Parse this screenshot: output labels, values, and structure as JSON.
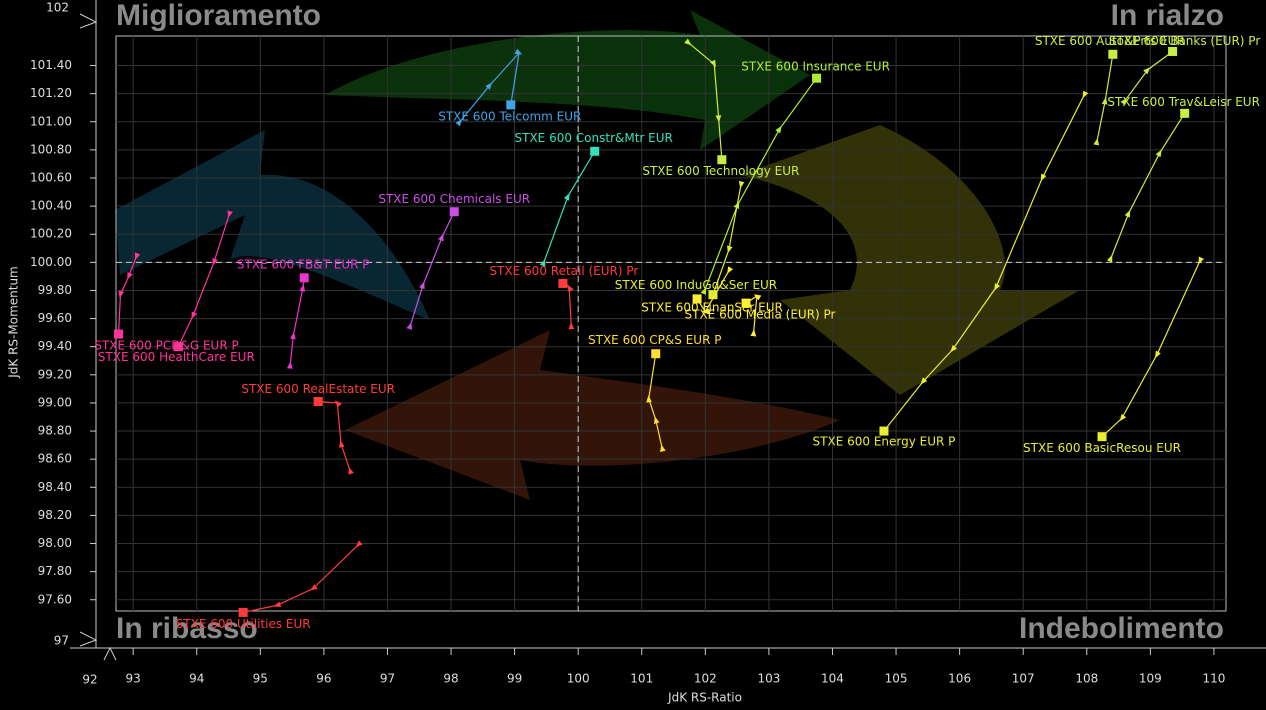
{
  "chart_data": {
    "type": "rrg",
    "x_label": "JdK RS-Ratio",
    "y_label": "JdK RS-Momentum",
    "quadrant_labels": {
      "top_left": "Miglioramento",
      "top_right": "In rialzo",
      "bottom_left": "In ribasso",
      "bottom_right": "Indebolimento"
    },
    "y_break_labels": [
      102,
      97
    ],
    "x_break_label": 92,
    "xlim": [
      92.73,
      110.19
    ],
    "ylim": [
      97.52,
      101.61
    ],
    "xticks": [
      93,
      94,
      95,
      96,
      97,
      98,
      99,
      100,
      101,
      102,
      103,
      104,
      105,
      106,
      107,
      108,
      109,
      110
    ],
    "yticks": [
      {
        "value": 97.6,
        "label": "97.60"
      },
      {
        "value": 97.8,
        "label": "97.80"
      },
      {
        "value": 98.0,
        "label": "98.00"
      },
      {
        "value": 98.2,
        "label": "98.20"
      },
      {
        "value": 98.4,
        "label": "98.40"
      },
      {
        "value": 98.6,
        "label": "98.60"
      },
      {
        "value": 98.8,
        "label": "98.80"
      },
      {
        "value": 99.0,
        "label": "99.00"
      },
      {
        "value": 99.2,
        "label": "99.20"
      },
      {
        "value": 99.4,
        "label": "99.40"
      },
      {
        "value": 99.6,
        "label": "99.60"
      },
      {
        "value": 99.8,
        "label": "99.80"
      },
      {
        "value": 100.0,
        "label": "100.00"
      },
      {
        "value": 100.2,
        "label": "100.20"
      },
      {
        "value": 100.4,
        "label": "100.40"
      },
      {
        "value": 100.6,
        "label": "100.60"
      },
      {
        "value": 100.8,
        "label": "100.80"
      },
      {
        "value": 101.0,
        "label": "101.00"
      },
      {
        "value": 101.2,
        "label": "101.20"
      },
      {
        "value": 101.4,
        "label": "101.40"
      }
    ],
    "grid": true,
    "reference_lines": {
      "x": 100,
      "y": 100
    },
    "series": [
      {
        "name": "STXE 600 Telcomm EUR",
        "color": "#3fa3e8",
        "x": [
          98.14,
          98.61,
          99.07,
          98.94
        ],
        "y": [
          101.0,
          101.26,
          101.49,
          101.12
        ]
      },
      {
        "name": "STXE 600 Constr&Mtr EUR",
        "color": "#33e0bb",
        "x": [
          99.46,
          99.84,
          100.26
        ],
        "y": [
          100.0,
          100.47,
          100.79
        ]
      },
      {
        "name": "STXE 600 Chemicals EUR",
        "color": "#cc4ee8",
        "x": [
          97.36,
          97.56,
          97.86,
          98.05
        ],
        "y": [
          99.55,
          99.84,
          100.18,
          100.36
        ]
      },
      {
        "name": "STXE 600 FB&T EUR P",
        "color": "#ee33cc",
        "x": [
          95.47,
          95.52,
          95.67,
          95.69
        ],
        "y": [
          99.27,
          99.48,
          99.82,
          99.89
        ]
      },
      {
        "name": "STXE 600 PCD&G EUR P",
        "color": "#ff3399",
        "x": [
          93.05,
          92.93,
          92.8,
          92.77
        ],
        "y": [
          100.04,
          99.9,
          99.77,
          99.49
        ]
      },
      {
        "name": "STXE 600 HealthCare EUR",
        "color": "#ff3399",
        "x": [
          94.51,
          94.27,
          93.94,
          93.71
        ],
        "y": [
          100.34,
          100.0,
          99.62,
          99.4
        ]
      },
      {
        "name": "STXE 600 RealEstate EUR",
        "color": "#ff3b3b",
        "x": [
          96.41,
          96.27,
          96.21,
          95.91
        ],
        "y": [
          98.52,
          98.71,
          99.0,
          99.01
        ]
      },
      {
        "name": "STXE 600 Utilities EUR",
        "color": "#ff3b3b",
        "x": [
          96.54,
          95.83,
          95.26,
          94.73
        ],
        "y": [
          97.99,
          97.68,
          97.56,
          97.51
        ]
      },
      {
        "name": "STXE 600 Retail (EUR) Pr",
        "color": "#ff3b3b",
        "x": [
          99.89,
          99.86,
          99.76
        ],
        "y": [
          99.55,
          99.82,
          99.85
        ]
      },
      {
        "name": "STXE 600 CP&S EUR P",
        "color": "#ffdd33",
        "x": [
          101.32,
          101.22,
          101.11,
          101.22
        ],
        "y": [
          98.68,
          98.88,
          99.03,
          99.35
        ]
      },
      {
        "name": "STXE 600 Technology EUR",
        "color": "#c8ee44",
        "x": [
          101.74,
          102.14,
          102.21,
          102.26
        ],
        "y": [
          101.56,
          101.41,
          101.02,
          100.73
        ]
      },
      {
        "name": "STXE 600 Insurance EUR",
        "color": "#b0ee33",
        "x": [
          101.99,
          102.51,
          103.17,
          103.75
        ],
        "y": [
          99.8,
          100.41,
          100.95,
          101.31
        ]
      },
      {
        "name": "STXE 600 InduGd&Ser EUR",
        "color": "#e0ee33",
        "x": [
          102.56,
          102.37,
          102.12
        ],
        "y": [
          100.55,
          100.09,
          99.77
        ]
      },
      {
        "name": "STXE 600 FinanSer EUR",
        "color": "#ffee33",
        "x": [
          102.37,
          102.0,
          101.87
        ],
        "y": [
          99.94,
          99.65,
          99.74
        ]
      },
      {
        "name": "STXE 600 Media (EUR) Pr",
        "color": "#ffee33",
        "x": [
          102.76,
          102.81,
          102.64
        ],
        "y": [
          99.5,
          99.76,
          99.71
        ]
      },
      {
        "name": "STXE 600 Energy EUR P",
        "color": "#e8ee33",
        "x": [
          107.96,
          107.3,
          106.57,
          105.89,
          105.42,
          104.81
        ],
        "y": [
          101.19,
          100.6,
          99.82,
          99.38,
          99.15,
          98.8
        ]
      },
      {
        "name": "STXE 600 Auto&Prts EUR",
        "color": "#c8ee44",
        "x": [
          108.16,
          108.29,
          108.41
        ],
        "y": [
          100.86,
          101.15,
          101.48
        ]
      },
      {
        "name": "STXE 600 Banks (EUR) Pr",
        "color": "#c8ee44",
        "x": [
          108.6,
          108.96,
          109.35
        ],
        "y": [
          101.15,
          101.37,
          101.5
        ]
      },
      {
        "name": "STXE 600 Trav&Leisr EUR",
        "color": "#c8ee44",
        "x": [
          108.38,
          108.66,
          109.15,
          109.54
        ],
        "y": [
          100.03,
          100.35,
          100.78,
          101.06
        ]
      },
      {
        "name": "STXE 600 BasicResou EUR",
        "color": "#e8ee33",
        "x": [
          109.78,
          109.1,
          108.55,
          108.24
        ],
        "y": [
          100.01,
          99.34,
          98.89,
          98.76
        ]
      }
    ]
  }
}
